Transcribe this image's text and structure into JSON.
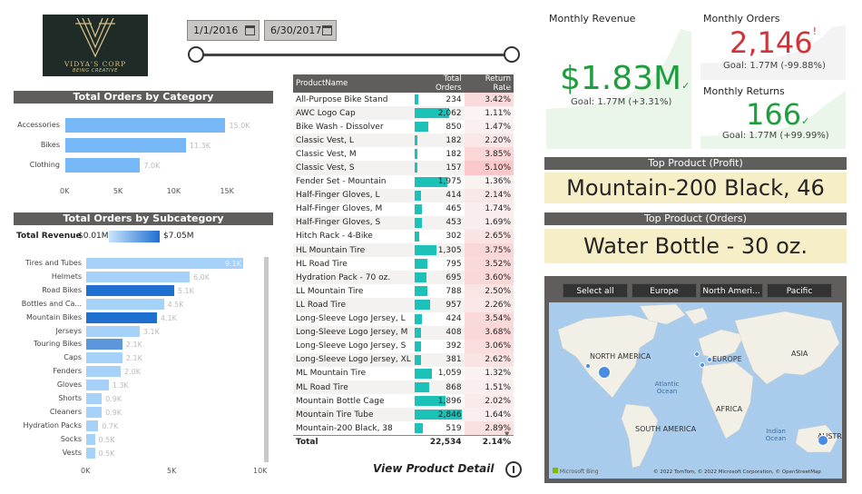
{
  "logo": {
    "name": "VIDYA'S CORP",
    "tagline": "BEING CREATIVE"
  },
  "date_slicer": {
    "start": "1/1/2016",
    "end": "6/30/2017"
  },
  "category_chart": {
    "title": "Total Orders by Category",
    "categories": [
      "Accessories",
      "Bikes",
      "Clothing"
    ],
    "values": [
      15000,
      11300,
      7000
    ],
    "labels": [
      "15.0K",
      "11.3K",
      "7.0K"
    ],
    "ticks": [
      "0K",
      "5K",
      "10K",
      "15K"
    ]
  },
  "subcategory_chart": {
    "title": "Total Orders by Subcategory",
    "legend_title": "Total Revenue",
    "legend_min": "$0.01M",
    "legend_max": "$7.05M",
    "categories": [
      "Tires and Tubes",
      "Helmets",
      "Road Bikes",
      "Bottles and Ca...",
      "Mountain Bikes",
      "Jerseys",
      "Touring Bikes",
      "Caps",
      "Fenders",
      "Gloves",
      "Shorts",
      "Cleaners",
      "Hydration Packs",
      "Socks",
      "Vests"
    ],
    "values": [
      9100,
      6000,
      5100,
      4500,
      4100,
      3100,
      2100,
      2100,
      2000,
      1300,
      900,
      900,
      700,
      500,
      500
    ],
    "labels": [
      "9.1K",
      "6.0K",
      "5.1K",
      "4.5K",
      "4.1K",
      "3.1K",
      "2.1K",
      "2.1K",
      "2.0K",
      "1.3K",
      "0.9K",
      "0.9K",
      "0.7K",
      "0.5K",
      "0.5K"
    ],
    "colors": [
      "#a6d2fa",
      "#a6d2fa",
      "#1e6fd0",
      "#a6d2fa",
      "#1e6fd0",
      "#a6d2fa",
      "#5b97da",
      "#a6d2fa",
      "#a6d2fa",
      "#a6d2fa",
      "#a6d2fa",
      "#a6d2fa",
      "#a6d2fa",
      "#a6d2fa",
      "#a6d2fa"
    ],
    "ticks": [
      "0K",
      "5K",
      "10K"
    ]
  },
  "product_table": {
    "headers": [
      "ProductName",
      "Total Orders",
      "Return Rate"
    ],
    "rows": [
      [
        "All-Purpose Bike Stand",
        "234",
        "3.42%"
      ],
      [
        "AWC Logo Cap",
        "2,062",
        "1.11%"
      ],
      [
        "Bike Wash - Dissolver",
        "850",
        "1.47%"
      ],
      [
        "Classic Vest, L",
        "182",
        "2.20%"
      ],
      [
        "Classic Vest, M",
        "182",
        "3.85%"
      ],
      [
        "Classic Vest, S",
        "157",
        "5.10%"
      ],
      [
        "Fender Set - Mountain",
        "1,975",
        "1.36%"
      ],
      [
        "Half-Finger Gloves, L",
        "414",
        "2.14%"
      ],
      [
        "Half-Finger Gloves, M",
        "465",
        "1.74%"
      ],
      [
        "Half-Finger Gloves, S",
        "453",
        "1.69%"
      ],
      [
        "Hitch Rack - 4-Bike",
        "302",
        "2.65%"
      ],
      [
        "HL Mountain Tire",
        "1,305",
        "3.75%"
      ],
      [
        "HL Road Tire",
        "795",
        "3.52%"
      ],
      [
        "Hydration Pack - 70 oz.",
        "695",
        "3.60%"
      ],
      [
        "LL Mountain Tire",
        "788",
        "2.50%"
      ],
      [
        "LL Road Tire",
        "957",
        "2.26%"
      ],
      [
        "Long-Sleeve Logo Jersey, L",
        "424",
        "3.54%"
      ],
      [
        "Long-Sleeve Logo Jersey, M",
        "408",
        "3.68%"
      ],
      [
        "Long-Sleeve Logo Jersey, S",
        "392",
        "3.06%"
      ],
      [
        "Long-Sleeve Logo Jersey, XL",
        "381",
        "2.62%"
      ],
      [
        "ML Mountain Tire",
        "1,059",
        "1.32%"
      ],
      [
        "ML Road Tire",
        "868",
        "1.51%"
      ],
      [
        "Mountain Bottle Cage",
        "1,896",
        "2.02%"
      ],
      [
        "Mountain Tire Tube",
        "2,846",
        "1.64%"
      ],
      [
        "Mountain-200 Black, 38",
        "519",
        "2.89%"
      ]
    ],
    "total": [
      "Total",
      "22,534",
      "2.14%"
    ]
  },
  "view_detail": {
    "label": "View Product Detail"
  },
  "kpi_revenue": {
    "title": "Monthly Revenue",
    "value": "$1.83M",
    "goal": "Goal: 1.77M (+3.31%)",
    "color": "#1e9e3e"
  },
  "kpi_orders": {
    "title": "Monthly Orders",
    "value": "2,146",
    "goal": "Goal: 1.77M (-99.88%)",
    "color": "#d13438"
  },
  "kpi_returns": {
    "title": "Monthly Returns",
    "value": "166",
    "goal": "Goal: 1.77M (+99.99%)",
    "color": "#1e9e3e"
  },
  "top_profit": {
    "title": "Top Product (Profit)",
    "value": "Mountain-200 Black, 46"
  },
  "top_orders": {
    "title": "Top Product (Orders)",
    "value": "Water Bottle - 30 oz."
  },
  "map": {
    "buttons": [
      "Select all",
      "Europe",
      "North Ameri...",
      "Pacific"
    ],
    "labels": {
      "na": "NORTH AMERICA",
      "eu": "EUROPE",
      "asia": "ASIA",
      "africa": "AFRICA",
      "sa": "SOUTH AMERICA",
      "au": "AUSTRA",
      "atlantic": "Atlantic\nOcean",
      "indian": "Indian\nOcean"
    },
    "attribution": "© 2022 TomTom, © 2022 Microsoft Corporation, © OpenStreetMap",
    "brand": "Microsoft Bing"
  }
}
